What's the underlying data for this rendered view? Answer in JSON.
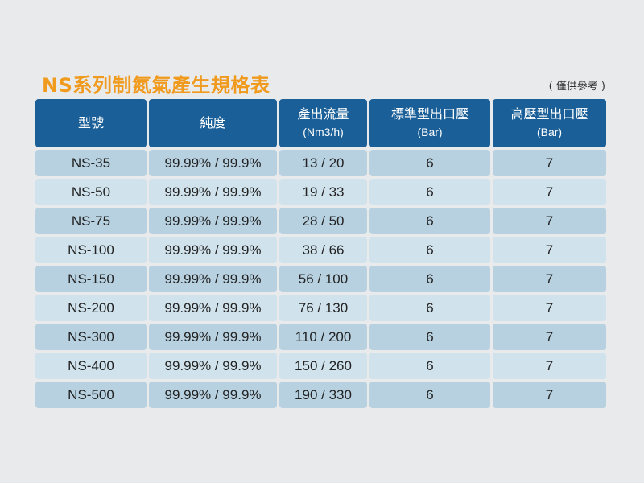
{
  "title": "NS系列制氮氣產生規格表",
  "note": "( 僅供參考 )",
  "headers": [
    {
      "main": "型號",
      "sub": ""
    },
    {
      "main": "純度",
      "sub": ""
    },
    {
      "main": "產出流量",
      "sub": "(Nm3/h)"
    },
    {
      "main": "標準型出口壓",
      "sub": "(Bar)"
    },
    {
      "main": "高壓型出口壓",
      "sub": "(Bar)"
    }
  ],
  "rows": [
    [
      "NS-35",
      "99.99% / 99.9%",
      "13 / 20",
      "6",
      "7"
    ],
    [
      "NS-50",
      "99.99% / 99.9%",
      "19 / 33",
      "6",
      "7"
    ],
    [
      "NS-75",
      "99.99% / 99.9%",
      "28 / 50",
      "6",
      "7"
    ],
    [
      "NS-100",
      "99.99% / 99.9%",
      "38 / 66",
      "6",
      "7"
    ],
    [
      "NS-150",
      "99.99% / 99.9%",
      "56 / 100",
      "6",
      "7"
    ],
    [
      "NS-200",
      "99.99% / 99.9%",
      "76 / 130",
      "6",
      "7"
    ],
    [
      "NS-300",
      "99.99% / 99.9%",
      "110 / 200",
      "6",
      "7"
    ],
    [
      "NS-400",
      "99.99% / 99.9%",
      "150 / 260",
      "6",
      "7"
    ],
    [
      "NS-500",
      "99.99% / 99.9%",
      "190 / 330",
      "6",
      "7"
    ]
  ]
}
